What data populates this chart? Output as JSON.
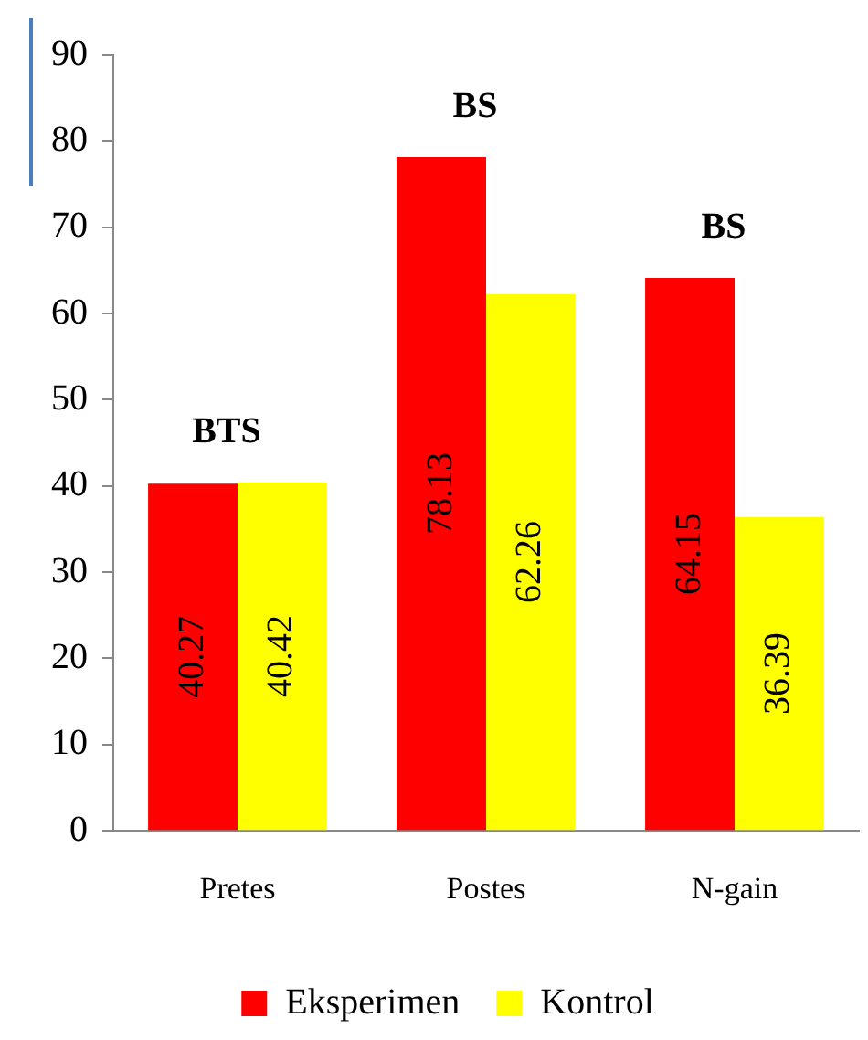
{
  "chart_data": {
    "type": "bar",
    "categories": [
      "Pretes",
      "Postes",
      "N-gain"
    ],
    "series": [
      {
        "name": "Eksperimen",
        "color": "#ff0000",
        "values": [
          40.27,
          78.13,
          64.15
        ]
      },
      {
        "name": "Kontrol",
        "color": "#ffff00",
        "values": [
          40.42,
          62.26,
          36.39
        ]
      }
    ],
    "ylim": [
      0,
      90
    ],
    "yticks": [
      0,
      10,
      20,
      30,
      40,
      50,
      60,
      70,
      80,
      90
    ],
    "grid": false,
    "legend": "bottom",
    "data_labels": true,
    "annotations": [
      "BTS",
      "BS",
      "BS"
    ]
  }
}
